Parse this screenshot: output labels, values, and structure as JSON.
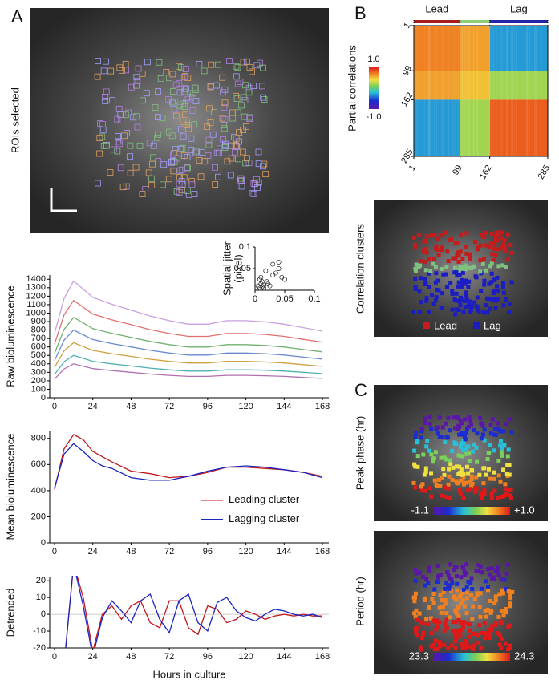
{
  "panels": {
    "a": "A",
    "b": "B",
    "c": "C"
  },
  "images": [
    {
      "label": "ROIs selected"
    },
    {
      "label": "Correlation clusters",
      "legend": [
        {
          "name": "Lead",
          "color": "#c41c1c"
        },
        {
          "name": "Lag",
          "color": "#1c1cc4"
        }
      ]
    },
    {
      "label": "Peak phase (hr)",
      "scale": [
        {
          "value": -1.1,
          "label": "-1.1"
        },
        {
          "value": 1.0,
          "label": "+1.0"
        }
      ]
    },
    {
      "label": "Period (hr)",
      "scale": [
        {
          "value": 23.3,
          "label": "23.3"
        },
        {
          "value": 24.3,
          "label": "24.3"
        }
      ]
    }
  ],
  "chart_data": [
    {
      "type": "heatmap",
      "ylabel": "Partial correlations",
      "groups": [
        {
          "name": "Lead",
          "color": "#a81c1c"
        },
        {
          "name": "Lag",
          "color": "#2424a8"
        }
      ],
      "ticks": [
        1,
        99,
        162,
        285
      ],
      "block_values": [
        [
          0.7,
          0.6,
          -0.3
        ],
        [
          0.6,
          0.5,
          0.2
        ],
        [
          -0.3,
          0.2,
          0.8
        ]
      ],
      "clim": [
        -1,
        1
      ],
      "colorbar_ticks": [
        {
          "value": 1,
          "label": "1.0"
        },
        {
          "value": -1,
          "label": "-1.0"
        }
      ]
    },
    {
      "type": "line",
      "ylabel": "Raw bioluminescence",
      "x": [
        0,
        6,
        12,
        18,
        24,
        36,
        48,
        60,
        72,
        84,
        96,
        108,
        120,
        132,
        144,
        156,
        168
      ],
      "xlim": [
        -3,
        172
      ],
      "ylim": [
        0,
        1450
      ],
      "xticks": [
        0,
        24,
        48,
        72,
        96,
        120,
        144,
        168
      ],
      "yticks": [
        0,
        100,
        200,
        300,
        400,
        500,
        600,
        700,
        800,
        900,
        1000,
        1100,
        1200,
        1300,
        1400
      ],
      "series": [
        {
          "color": "#c9a0e0",
          "values": [
            759,
            1173,
            1380,
            1283,
            1187,
            1104,
            1035,
            966,
            911,
            869,
            869,
            911,
            911,
            897,
            869,
            828,
            787
          ]
        },
        {
          "color": "#e07070",
          "values": [
            633,
            978,
            1150,
            1070,
            989,
            920,
            863,
            805,
            759,
            725,
            725,
            759,
            759,
            748,
            725,
            690,
            656
          ]
        },
        {
          "color": "#70b070",
          "values": [
            523,
            808,
            950,
            884,
            817,
            760,
            713,
            665,
            627,
            599,
            599,
            627,
            627,
            618,
            599,
            570,
            542
          ]
        },
        {
          "color": "#6a8ad0",
          "values": [
            440,
            680,
            800,
            744,
            688,
            640,
            600,
            560,
            528,
            504,
            504,
            528,
            528,
            520,
            504,
            480,
            456
          ]
        },
        {
          "color": "#d0a040",
          "values": [
            358,
            553,
            650,
            605,
            559,
            520,
            488,
            455,
            429,
            410,
            410,
            429,
            429,
            423,
            410,
            390,
            371
          ]
        },
        {
          "color": "#50b0b0",
          "values": [
            275,
            425,
            500,
            465,
            430,
            400,
            375,
            350,
            330,
            315,
            315,
            330,
            330,
            325,
            315,
            300,
            285
          ]
        },
        {
          "color": "#b070b0",
          "values": [
            220,
            340,
            400,
            372,
            344,
            320,
            300,
            280,
            264,
            252,
            252,
            264,
            264,
            260,
            252,
            240,
            228
          ]
        }
      ]
    },
    {
      "type": "scatter",
      "ylabel_lines": [
        "Spatial jitter",
        "(pixel)"
      ],
      "xlim": [
        0,
        0.1
      ],
      "ylim": [
        0,
        0.1
      ],
      "xticks": [
        0,
        0.05,
        0.1
      ],
      "yticks": [
        0.05,
        0.1
      ],
      "x": [
        0.005,
        0.008,
        0.01,
        0.012,
        0.015,
        0.01,
        0.02,
        0.025,
        0.03,
        0.035,
        0.04,
        0.045,
        0.05,
        0.012,
        0.018,
        0.022,
        0.03,
        0.008,
        0.015,
        0.04
      ],
      "y": [
        0.01,
        0.005,
        0.015,
        0.008,
        0.012,
        0.03,
        0.02,
        0.01,
        0.035,
        0.04,
        0.05,
        0.03,
        0.025,
        0.02,
        0.045,
        0.015,
        0.06,
        0.025,
        0.005,
        0.065
      ]
    },
    {
      "type": "line",
      "ylabel": "Mean bioluminescence",
      "x": [
        0,
        6,
        12,
        18,
        24,
        30,
        36,
        48,
        60,
        72,
        84,
        96,
        108,
        120,
        132,
        144,
        156,
        168
      ],
      "xlim": [
        -3,
        172
      ],
      "ylim": [
        0,
        860
      ],
      "xticks": [
        0,
        24,
        48,
        72,
        96,
        120,
        144,
        168
      ],
      "yticks": [
        0,
        200,
        400,
        600,
        800
      ],
      "series": [
        {
          "name": "Leading cluster",
          "color": "#c0161c",
          "values": [
            410,
            720,
            830,
            790,
            700,
            660,
            620,
            550,
            530,
            500,
            510,
            540,
            580,
            580,
            570,
            560,
            540,
            510
          ]
        },
        {
          "name": "Lagging cluster",
          "color": "#1c24c0",
          "values": [
            420,
            680,
            760,
            700,
            630,
            590,
            570,
            500,
            480,
            480,
            510,
            550,
            580,
            590,
            580,
            560,
            540,
            500
          ]
        }
      ]
    },
    {
      "type": "line",
      "ylabel": "Detrended",
      "xlabel": "Hours in culture",
      "zero_line": true,
      "x": [
        6,
        12,
        18,
        24,
        30,
        36,
        42,
        48,
        54,
        60,
        66,
        72,
        78,
        84,
        90,
        96,
        102,
        108,
        114,
        120,
        126,
        132,
        138,
        144,
        150,
        156,
        162,
        168
      ],
      "xlim": [
        -3,
        172
      ],
      "ylim": [
        -20,
        22
      ],
      "xticks": [
        0,
        24,
        48,
        72,
        96,
        120,
        144,
        168
      ],
      "yticks": [
        -20,
        -10,
        0,
        10,
        20
      ],
      "series": [
        {
          "color": "#c0161c",
          "values": [
            -30,
            30,
            10,
            -22,
            0,
            5,
            -3,
            5,
            8,
            -5,
            -8,
            8,
            8,
            -8,
            -12,
            5,
            3,
            -5,
            -3,
            2,
            0,
            -3,
            -1,
            0,
            -1,
            0,
            -1,
            -1
          ]
        },
        {
          "color": "#1c24c0",
          "values": [
            -30,
            30,
            5,
            -25,
            -2,
            8,
            2,
            -5,
            8,
            12,
            -3,
            -11,
            8,
            12,
            -5,
            -10,
            7,
            10,
            2,
            -2,
            -4,
            0,
            3,
            2,
            0,
            -1,
            0,
            -2
          ]
        }
      ]
    }
  ]
}
